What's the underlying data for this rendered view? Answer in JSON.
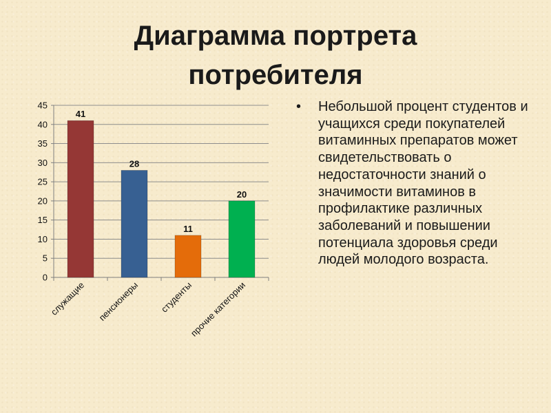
{
  "slide": {
    "title": "Диаграмма портрета потребителя",
    "bullet": "Небольшой процент студентов и учащихся среди покупателей витаминных препаратов может свидетельствовать о недостаточности знаний о значимости витаминов в профилактике различных заболеваний и повышении потенциала здоровья среди людей молодого возраста."
  },
  "chart_data": {
    "type": "bar",
    "title": "",
    "xlabel": "",
    "ylabel": "",
    "categories": [
      "служащие",
      "пенсионеры",
      "студенты",
      "прочие категории"
    ],
    "values": [
      41,
      28,
      11,
      20
    ],
    "data_labels": [
      "41",
      "28",
      "11",
      "20"
    ],
    "bar_colors": [
      "#953735",
      "#376092",
      "#e46c0a",
      "#00b050"
    ],
    "ylim": [
      0,
      45
    ],
    "yticks": [
      0,
      5,
      10,
      15,
      20,
      25,
      30,
      35,
      40,
      45
    ],
    "ytick_labels": [
      "0",
      "5",
      "10",
      "15",
      "20",
      "25",
      "30",
      "35",
      "40",
      "45"
    ],
    "grid": true,
    "legend": "none"
  }
}
